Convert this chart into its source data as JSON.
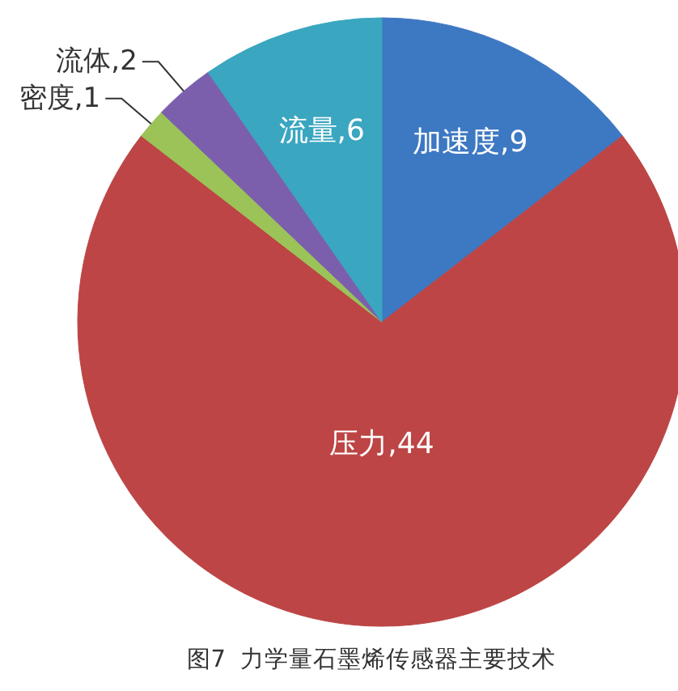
{
  "chart_data": {
    "type": "pie",
    "categories": [
      "加速度",
      "压力",
      "密度",
      "流体",
      "流量"
    ],
    "values": [
      9,
      44,
      1,
      2,
      6
    ],
    "value_labels": [
      ",9",
      ",44",
      ",1",
      ",2",
      ",6"
    ],
    "colors": [
      "#3d78c2",
      "#bd4545",
      "#9bc358",
      "#7b5fad",
      "#3aa6c0"
    ],
    "annotations": [
      "图7  力学量石墨烯传感器主要技术"
    ]
  }
}
